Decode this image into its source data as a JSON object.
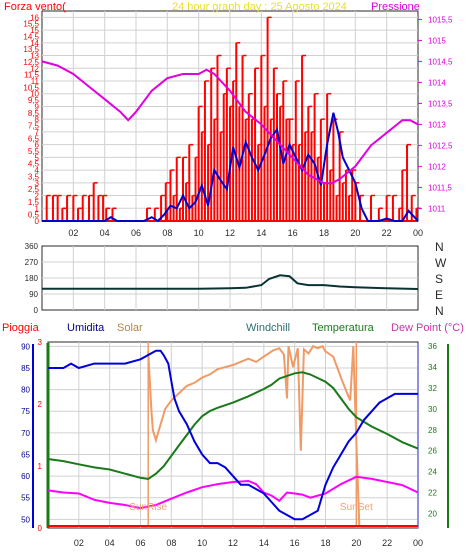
{
  "colors": {
    "background": "#ffffff",
    "grid": "#d0d0d0",
    "axis": "#2a2a2a",
    "wind_bars": "#ff0000",
    "wind_avg": "#0000cc",
    "pressure": "#e000e0",
    "direction": "#0a3333",
    "humidity": "#0000dd",
    "solar": "#f09a66",
    "windchill": "#2e8b57",
    "temperature": "#1a7a1a",
    "dewpoint": "#ff00ff",
    "rain": "#ff0000",
    "label_red": "#ff0000",
    "label_yellow": "#e8e030",
    "label_magenta": "#e000e0",
    "label_navy": "#00008b",
    "label_olive": "#b0884a",
    "label_teal": "#2f6f6f",
    "label_green": "#1a7a1a",
    "label_pink": "#cc33aa",
    "sunrise_label": "#f0a070"
  },
  "chart_data": [
    {
      "type": "line",
      "title": "24 hour graph day : 25 Agosto 2024",
      "left_label": "Forza vento(",
      "right_label": "Pressione",
      "x_ticks": [
        "02",
        "04",
        "06",
        "08",
        "10",
        "12",
        "14",
        "16",
        "18",
        "20",
        "22",
        "00"
      ],
      "y_left_ticks": [
        "0",
        "0,5",
        "1",
        "1,5",
        "2",
        "2,5",
        "3",
        "3,5",
        "4",
        "4,5",
        "5",
        "5,5",
        "6",
        "6,5",
        "7",
        "7,5",
        "8",
        "8,5",
        "9",
        "9,5",
        "10",
        "10,5",
        "11",
        "11,5",
        "12",
        "12,5",
        "13",
        "13,5",
        "14",
        "14,5",
        "15",
        "15,5",
        "16"
      ],
      "y_right_ticks": [
        "1011",
        "1011,5",
        "1012",
        "1012,5",
        "1013",
        "1013,5",
        "1014",
        "1014,5",
        "1015",
        "1015,5"
      ],
      "ylim_left": [
        0,
        16.5
      ],
      "ylim_right": [
        1010.7,
        1015.7
      ],
      "series": [
        {
          "id": "gust",
          "kind": "bars",
          "x": [
            0.3,
            0.7,
            1.0,
            1.3,
            1.6,
            2.0,
            2.3,
            2.6,
            3.0,
            3.3,
            3.6,
            3.9,
            4.1,
            4.5,
            6.7,
            7.2,
            7.6,
            7.9,
            8.0,
            8.2,
            8.4,
            8.6,
            8.8,
            9.0,
            9.2,
            9.4,
            9.6,
            9.8,
            10.0,
            10.2,
            10.4,
            10.6,
            10.8,
            11.0,
            11.2,
            11.4,
            11.6,
            11.8,
            12.0,
            12.2,
            12.4,
            12.6,
            12.8,
            13.0,
            13.2,
            13.4,
            13.6,
            13.8,
            14.0,
            14.2,
            14.4,
            14.6,
            14.8,
            15.0,
            15.2,
            15.4,
            15.6,
            15.8,
            16.0,
            16.2,
            16.4,
            16.6,
            16.8,
            17.0,
            17.2,
            17.4,
            17.6,
            17.8,
            18.0,
            18.2,
            18.4,
            18.6,
            18.8,
            19.0,
            19.2,
            19.4,
            19.6,
            19.8,
            20.0,
            20.3,
            21.0,
            21.5,
            22.0,
            22.4,
            22.8,
            23.0,
            23.3,
            23.6,
            23.9
          ],
          "values": [
            2,
            2,
            2,
            1,
            2,
            2,
            1,
            2,
            2,
            3,
            2,
            2,
            1,
            1,
            1,
            1,
            2,
            3,
            1,
            4,
            2,
            5,
            1,
            5,
            3,
            6,
            2,
            5,
            9,
            7,
            11,
            6,
            12,
            8,
            13,
            7,
            10,
            12,
            9,
            11,
            14,
            9,
            13,
            8,
            10,
            8,
            12,
            6,
            13,
            9,
            16,
            8,
            12,
            10,
            9,
            11,
            8,
            8,
            6,
            11,
            6,
            13,
            7,
            9,
            7,
            10,
            5,
            8,
            3,
            10,
            4,
            8,
            2,
            7,
            3,
            4,
            2,
            4,
            3,
            2,
            2,
            1,
            2,
            2,
            1,
            4,
            6,
            2,
            1
          ]
        },
        {
          "id": "wind_avg",
          "kind": "line",
          "x": [
            0,
            4.0,
            4.4,
            4.8,
            6.5,
            7.0,
            7.4,
            7.8,
            8.2,
            8.6,
            9.0,
            9.4,
            9.8,
            10.2,
            10.6,
            11.0,
            11.4,
            11.8,
            12.2,
            12.6,
            13.0,
            13.4,
            13.8,
            14.2,
            14.6,
            15.0,
            15.4,
            15.8,
            16.2,
            16.6,
            17.0,
            17.4,
            17.8,
            18.2,
            18.6,
            18.9,
            19.2,
            19.6,
            20.0,
            20.4,
            20.8,
            21.5,
            22.0,
            22.5,
            23.0,
            23.4,
            23.7,
            24.0
          ],
          "values": [
            0,
            0,
            0.3,
            0,
            0,
            0.3,
            0,
            0.5,
            1.2,
            1.0,
            2.0,
            1.0,
            1.5,
            2.8,
            1.2,
            4.0,
            3.2,
            2.5,
            5.8,
            4.2,
            6.2,
            5.0,
            4.0,
            5.2,
            6.5,
            7.2,
            4.5,
            6.0,
            5.0,
            4.0,
            5.2,
            4.5,
            2.8,
            6.0,
            8.5,
            7.0,
            5.0,
            4.0,
            3.0,
            1.0,
            0,
            0,
            0.2,
            0,
            0,
            0.8,
            0.4,
            0
          ]
        },
        {
          "id": "pressure",
          "kind": "line",
          "axis": "right",
          "x": [
            0,
            1,
            2,
            3,
            4,
            5,
            5.5,
            6,
            7,
            8,
            9,
            10,
            10.5,
            11,
            11.5,
            12,
            13,
            14,
            15,
            16,
            17,
            17.5,
            18,
            18.5,
            19,
            20,
            21,
            22,
            23,
            23.5,
            24
          ],
          "values": [
            1014.5,
            1014.4,
            1014.2,
            1013.9,
            1013.6,
            1013.3,
            1013.1,
            1013.3,
            1013.8,
            1014.1,
            1014.2,
            1014.2,
            1014.3,
            1014.2,
            1014.0,
            1013.8,
            1013.3,
            1013.0,
            1012.6,
            1012.2,
            1011.8,
            1011.7,
            1011.6,
            1011.6,
            1011.7,
            1012.0,
            1012.5,
            1012.8,
            1013.1,
            1013.1,
            1013.0
          ]
        }
      ]
    },
    {
      "type": "line",
      "title": "",
      "x_ticks": [
        "02",
        "04",
        "06",
        "08",
        "10",
        "12",
        "14",
        "16",
        "18",
        "20",
        "22",
        "00"
      ],
      "y_left_ticks": [
        "0",
        "90",
        "180",
        "270",
        "360"
      ],
      "y_right_labels": [
        "N",
        "W",
        "S",
        "E",
        "N"
      ],
      "ylim": [
        0,
        360
      ],
      "series": [
        {
          "id": "direction",
          "x": [
            0,
            8,
            10,
            12,
            13,
            14,
            14.5,
            15.2,
            15.8,
            16.3,
            17,
            18,
            19,
            20,
            22,
            24
          ],
          "values": [
            120,
            120,
            120,
            122,
            125,
            140,
            175,
            195,
            190,
            150,
            140,
            140,
            132,
            128,
            122,
            118
          ]
        }
      ]
    },
    {
      "type": "line",
      "title": "",
      "series_labels": {
        "rain": "Pioggia",
        "humidity": "Umidita",
        "solar": "Solar",
        "windchill": "Windchill",
        "temperature": "Temperatura",
        "dewpoint": "Dew Point (°C)"
      },
      "x_ticks": [
        "02",
        "04",
        "06",
        "08",
        "10",
        "12",
        "14",
        "16",
        "18",
        "20",
        "22",
        "00"
      ],
      "y_left_ticks": [
        "50",
        "55",
        "60",
        "65",
        "70",
        "75",
        "80",
        "85",
        "90"
      ],
      "y_right_ticks": [
        "20",
        "22",
        "24",
        "26",
        "28",
        "30",
        "32",
        "34",
        "36"
      ],
      "rain_ticks": [
        "0",
        "1",
        "2",
        "3"
      ],
      "ylim_left": [
        48,
        91
      ],
      "ylim_right": [
        18.6,
        36.4
      ],
      "annotations": {
        "sunrise": "SunRise",
        "sunset": "SunSet"
      },
      "sunrise_x": 6.5,
      "sunset_x": 20,
      "series": [
        {
          "id": "humidity",
          "axis": "left",
          "x": [
            0,
            1.0,
            1.5,
            2.0,
            3.0,
            4.0,
            5.0,
            6.0,
            6.5,
            7.0,
            7.3,
            7.5,
            7.8,
            8.0,
            8.2,
            8.5,
            9.0,
            9.5,
            10.0,
            10.5,
            11.0,
            11.5,
            12.0,
            12.5,
            13.0,
            13.5,
            14.0,
            14.5,
            15.0,
            15.5,
            16.0,
            16.5,
            17.0,
            17.5,
            18.0,
            18.5,
            19.0,
            19.5,
            20.0,
            20.5,
            21.0,
            21.5,
            22.0,
            22.5,
            23.0,
            24.0
          ],
          "values": [
            85,
            85,
            86,
            85,
            86,
            86,
            86,
            87,
            88,
            89,
            89,
            88,
            86,
            82,
            78,
            75,
            72,
            68,
            65,
            63,
            63,
            62,
            60,
            58,
            58,
            57,
            56,
            54,
            52,
            51,
            50,
            50,
            51,
            52,
            58,
            62,
            65,
            68,
            70,
            73,
            75,
            77,
            78,
            79,
            79,
            79
          ]
        },
        {
          "id": "solar",
          "axis": "right",
          "x": [
            0,
            6.4,
            6.5,
            6.7,
            6.8,
            7.0,
            7.3,
            7.6,
            8.0,
            8.5,
            9.0,
            9.5,
            10.0,
            10.5,
            11.0,
            12.0,
            13.0,
            13.5,
            14.0,
            14.3,
            14.6,
            15.0,
            15.3,
            15.5,
            15.6,
            15.9,
            16.2,
            16.4,
            16.6,
            16.9,
            17.2,
            17.5,
            17.8,
            18.0,
            18.5,
            19.0,
            19.4,
            19.6,
            19.8,
            20.0,
            20.2
          ],
          "values": [
            null,
            null,
            35.5,
            30,
            28,
            27,
            28.5,
            30,
            30.8,
            31.5,
            32.2,
            32.5,
            33,
            33.3,
            33.8,
            34.2,
            34.8,
            34.5,
            35,
            35.3,
            35.6,
            35.8,
            35.2,
            31,
            36,
            34,
            35.8,
            26,
            35.7,
            35.3,
            36,
            35.8,
            36,
            35.5,
            35,
            33,
            31.5,
            30.8,
            36,
            27,
            18.6
          ]
        },
        {
          "id": "windchill",
          "axis": "right",
          "x": [
            0,
            24
          ],
          "values": [
            null,
            null
          ]
        },
        {
          "id": "temperature",
          "axis": "right",
          "x": [
            0,
            1,
            2,
            3,
            4,
            5,
            6,
            6.5,
            7,
            7.5,
            8,
            8.5,
            9,
            9.5,
            10,
            10.5,
            11,
            12,
            13,
            14,
            14.5,
            15,
            16,
            16.5,
            17,
            18,
            18.5,
            19,
            19.5,
            20,
            21,
            22,
            23,
            24
          ],
          "values": [
            25.2,
            25.0,
            24.7,
            24.4,
            24.2,
            23.8,
            23.4,
            23.3,
            23.8,
            24.5,
            25.5,
            26.5,
            27.5,
            28.5,
            29.3,
            29.8,
            30.1,
            30.6,
            31.2,
            31.9,
            32.3,
            32.9,
            33.4,
            33.5,
            33.3,
            32.6,
            32.0,
            31.0,
            30.0,
            29.2,
            28.3,
            27.6,
            26.8,
            26.2
          ]
        },
        {
          "id": "dewpoint",
          "axis": "right",
          "x": [
            0,
            1,
            2,
            3,
            4,
            5,
            6,
            7,
            8,
            9,
            10,
            11,
            12,
            13,
            13.5,
            14,
            14.5,
            15,
            15.5,
            16,
            16.5,
            17,
            17.5,
            18,
            19,
            20,
            21,
            22,
            23,
            24
          ],
          "values": [
            22.2,
            22.0,
            21.9,
            21.3,
            21.0,
            20.8,
            20.5,
            20.8,
            21.4,
            22.0,
            22.5,
            22.8,
            23.0,
            23.1,
            22.8,
            22.0,
            21.7,
            21.2,
            22.0,
            21.9,
            21.8,
            21.5,
            21.7,
            21.9,
            22.8,
            23.5,
            23.3,
            23.0,
            22.7,
            22.0
          ]
        },
        {
          "id": "rain",
          "axis": "rain",
          "x": [
            0,
            24
          ],
          "values": [
            0,
            0
          ]
        }
      ]
    }
  ]
}
